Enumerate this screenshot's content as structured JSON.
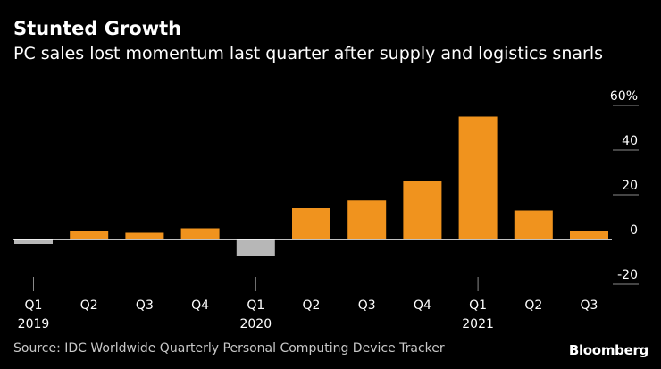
{
  "chart_data": {
    "type": "bar",
    "title": "Stunted Growth",
    "subtitle": "PC sales lost momentum last quarter after supply and logistics snarls",
    "categories": [
      "Q1",
      "Q2",
      "Q3",
      "Q4",
      "Q1",
      "Q2",
      "Q3",
      "Q4",
      "Q1",
      "Q2",
      "Q3"
    ],
    "years": [
      {
        "label": "2019",
        "index": 0
      },
      {
        "label": "2020",
        "index": 4
      },
      {
        "label": "2021",
        "index": 8
      }
    ],
    "values": [
      -2.0,
      4.0,
      3.0,
      5.0,
      -7.5,
      14.0,
      17.5,
      26.0,
      55.0,
      13.0,
      4.0
    ],
    "ylim": [
      -20,
      60
    ],
    "yticks": [
      -20,
      0,
      20,
      40,
      60
    ],
    "ytick_labels": [
      "-20",
      "0",
      "20",
      "40",
      "60%"
    ],
    "xlabel": "",
    "ylabel": "",
    "colors": {
      "positive": "#f0931e",
      "negative": "#b7b7b7"
    }
  },
  "source": "Source: IDC Worldwide Quarterly Personal Computing Device Tracker",
  "brand": "Bloomberg"
}
